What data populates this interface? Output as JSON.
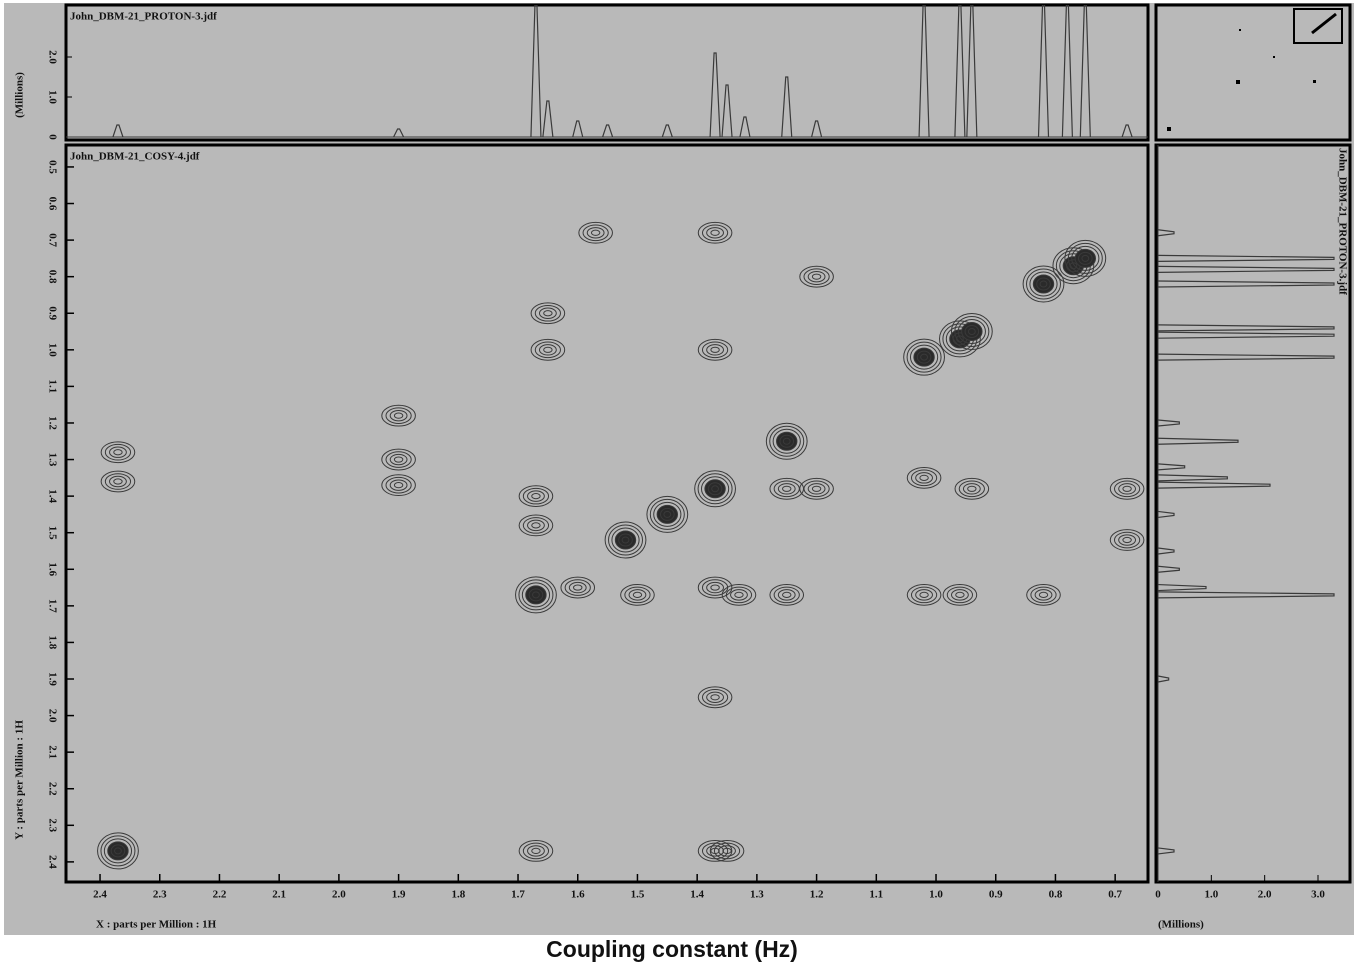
{
  "chart_data": {
    "type": "contour",
    "title": "Coupling constant (Hz)",
    "background": "#b9b9b9",
    "line_color": "#3a3a3a",
    "main": {
      "label": "John_DBM-21_COSY-4.jdf",
      "xlabel": "X : parts per Million : 1H",
      "ylabel": "Y : parts per Million : 1H",
      "xlim": [
        2.457,
        0.645
      ],
      "ylim": [
        0.44,
        2.455
      ],
      "xticks": [
        2.4,
        2.3,
        2.2,
        2.1,
        {
          "value": 2,
          "label": "2.0"
        },
        1.9,
        1.8,
        1.7,
        1.6,
        1.5,
        1.4,
        1.3,
        1.2,
        1.1,
        {
          "value": 1,
          "label": "1.0"
        },
        0.9,
        0.8,
        0.7
      ],
      "yticks": [
        0.5,
        0.6,
        0.7,
        0.8,
        0.9,
        {
          "value": 1,
          "label": "1.0"
        },
        1.1,
        1.2,
        1.3,
        1.4,
        1.5,
        1.6,
        1.7,
        1.8,
        1.9,
        {
          "value": 2,
          "label": "2.0"
        },
        2.1,
        2.2,
        2.3,
        2.4
      ],
      "peaks": {
        "x": [
          1.67,
          1.37,
          1.25,
          1.02,
          0.96,
          0.94,
          0.82,
          0.77,
          0.75,
          1.52,
          1.45,
          2.37,
          2.37,
          1.9,
          1.9,
          1.9,
          1.65,
          1.65,
          1.67,
          1.67,
          1.37,
          1.37,
          1.37,
          1.37,
          1.37,
          1.25,
          1.25,
          1.2,
          1.02,
          1.02,
          0.96,
          0.94,
          0.82,
          0.68,
          0.68,
          1.57,
          1.5,
          1.33,
          1.2,
          2.37,
          1.67,
          1.35,
          1.6
        ],
        "y": [
          1.67,
          1.38,
          1.25,
          1.02,
          0.97,
          0.95,
          0.82,
          0.77,
          0.75,
          1.52,
          1.45,
          1.28,
          1.36,
          1.3,
          1.37,
          1.18,
          0.9,
          1.0,
          1.4,
          1.48,
          0.68,
          1.0,
          1.65,
          1.95,
          2.37,
          1.38,
          1.67,
          1.38,
          1.67,
          1.35,
          1.67,
          1.38,
          1.67,
          1.38,
          1.52,
          0.68,
          1.67,
          1.67,
          0.8,
          2.37,
          2.37,
          2.37,
          1.65
        ]
      }
    },
    "top": {
      "label": "John_DBM-21_PROTON-3.jdf",
      "ylabel": "(Millions)",
      "ylim": [
        0,
        3.3
      ],
      "yticks": [
        0,
        {
          "value": 1,
          "label": "1.0"
        },
        {
          "value": 2,
          "label": "2.0"
        }
      ],
      "peaks": {
        "x": [
          2.37,
          1.9,
          1.67,
          1.65,
          1.6,
          1.55,
          1.45,
          1.37,
          1.35,
          1.32,
          1.25,
          1.2,
          1.02,
          0.96,
          0.94,
          0.82,
          0.78,
          0.75,
          0.68
        ],
        "values": [
          0.3,
          0.2,
          3.3,
          0.9,
          0.4,
          0.3,
          0.3,
          2.1,
          1.3,
          0.5,
          1.5,
          0.4,
          3.3,
          3.3,
          3.3,
          3.3,
          3.3,
          3.3,
          0.3
        ]
      }
    },
    "right": {
      "label": "John_DBM-21_PROTON-3.jdf",
      "xlabel": "(Millions)",
      "xlim": [
        0,
        3.6
      ],
      "xticks": [
        0,
        {
          "value": 1,
          "label": "1.0"
        },
        {
          "value": 2,
          "label": "2.0"
        },
        {
          "value": 3,
          "label": "3.0"
        }
      ]
    }
  }
}
